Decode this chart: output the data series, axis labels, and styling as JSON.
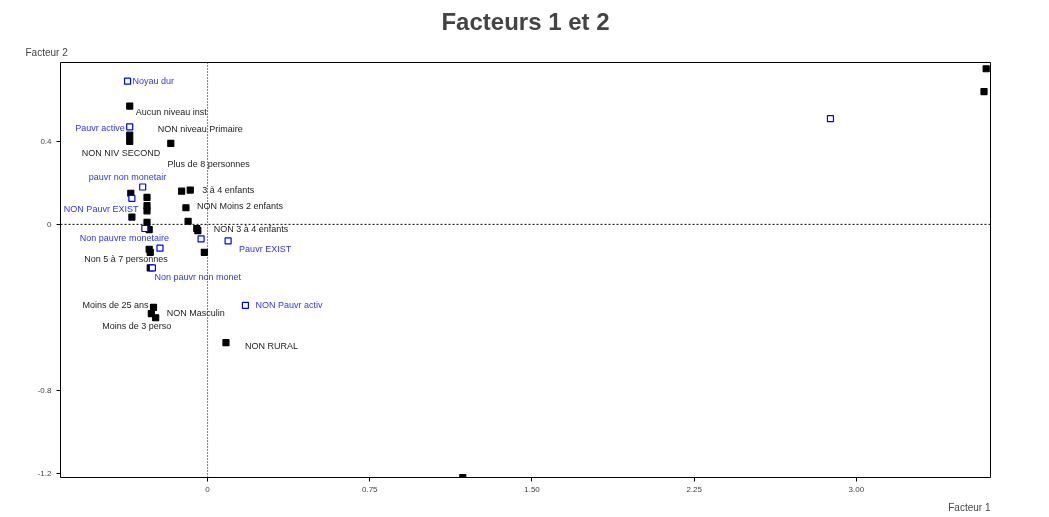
{
  "chart_data": {
    "type": "scatter",
    "title": "Facteurs 1 et 2",
    "xlabel": "Facteur 1",
    "ylabel": "Facteur 2",
    "marker": "square",
    "grid": false,
    "xlim": [
      -0.68,
      3.62
    ],
    "ylim": [
      -1.22,
      0.78
    ],
    "xticks": [
      0,
      {
        "value": 0.75,
        "label": "0.75"
      },
      {
        "value": 1.5,
        "label": "1.50"
      },
      {
        "value": 2.25,
        "label": "2.25"
      },
      {
        "value": 3.0,
        "label": "3.00"
      }
    ],
    "yticks": [
      {
        "value": -1.2,
        "label": "-1.2"
      },
      {
        "value": -0.8,
        "label": "-0.8"
      },
      0,
      {
        "value": 0.4,
        "label": "0.4"
      }
    ],
    "ref_lines": [
      {
        "axis": "x",
        "value": 0,
        "line_style": "dotted",
        "color": "#000000"
      },
      {
        "axis": "y",
        "value": 0,
        "line_style": "dashed",
        "color": "#000000"
      }
    ],
    "series": [
      {
        "color": "#000000",
        "x": [
          -0.36,
          -0.36,
          -0.36,
          -0.17,
          -0.355,
          -0.28,
          -0.28,
          -0.28,
          -0.35,
          -0.28,
          -0.27,
          -0.12,
          -0.08,
          -0.1,
          -0.09,
          -0.05,
          -0.045,
          -0.015,
          -0.27,
          -0.265,
          -0.265,
          -0.25,
          -0.26,
          -0.24,
          0.085,
          1.18,
          3.6,
          3.59
        ],
        "values": [
          0.57,
          0.43,
          0.4,
          0.39,
          0.15,
          0.13,
          0.09,
          0.065,
          0.035,
          0.01,
          -0.025,
          0.16,
          0.165,
          0.08,
          0.015,
          -0.02,
          -0.03,
          -0.135,
          -0.12,
          -0.135,
          -0.21,
          -0.4,
          -0.43,
          -0.45,
          -0.57,
          -1.22,
          0.75,
          0.64
        ]
      },
      {
        "color": "#0000ff",
        "x": [
          -0.37,
          -0.36,
          -0.3,
          -0.35,
          -0.29,
          -0.22,
          -0.03,
          0.095,
          -0.255,
          0.175,
          2.88
        ],
        "values": [
          0.69,
          0.47,
          0.18,
          0.125,
          -0.02,
          -0.115,
          -0.07,
          -0.08,
          -0.21,
          -0.39,
          0.51
        ]
      }
    ],
    "annotations": [
      {
        "text": "Noyau dur",
        "x": -0.37,
        "y": 0.69
      },
      {
        "text": "Aucun niveau inst",
        "x": -0.36,
        "y": 0.57
      },
      {
        "text": "Pauvr active",
        "x": -0.36,
        "y": 0.47
      },
      {
        "text": "NON niveau Primaire",
        "x": -0.17,
        "y": 0.39
      },
      {
        "text": "NON NIV SECOND",
        "x": -0.36,
        "y": 0.4
      },
      {
        "text": "Plus de 8 personnes",
        "x": -0.12,
        "y": 0.16
      },
      {
        "text": "pauvr non monetair",
        "x": -0.3,
        "y": 0.18
      },
      {
        "text": "3 à 4 enfants",
        "x": -0.08,
        "y": 0.165
      },
      {
        "text": "NON Moins 2 enfants",
        "x": -0.1,
        "y": 0.08
      },
      {
        "text": "NON Pauvr EXIST",
        "x": -0.35,
        "y": 0.125
      },
      {
        "text": "NON 3 à 4 enfants",
        "x": -0.05,
        "y": -0.02
      },
      {
        "text": "Non pauvre monetaire",
        "x": -0.29,
        "y": -0.02
      },
      {
        "text": "Pauvr EXIST",
        "x": 0.095,
        "y": -0.08
      },
      {
        "text": "Non 5 à 7 personnes",
        "x": -0.265,
        "y": -0.135
      },
      {
        "text": "Non pauvr non monet",
        "x": -0.255,
        "y": -0.21
      },
      {
        "text": "Moins de 25 ans",
        "x": -0.25,
        "y": -0.4
      },
      {
        "text": "NON Masculin",
        "x": -0.24,
        "y": -0.45
      },
      {
        "text": "Moins de 3 perso",
        "x": -0.26,
        "y": -0.43
      },
      {
        "text": "NON Pauvr activ",
        "x": 0.175,
        "y": -0.39
      },
      {
        "text": "NON RURAL",
        "x": 0.085,
        "y": -0.57
      }
    ]
  }
}
